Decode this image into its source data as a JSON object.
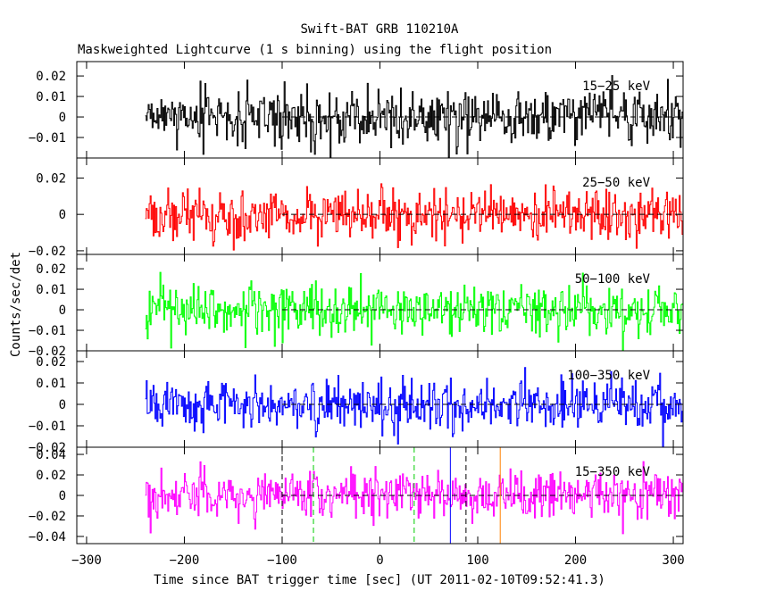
{
  "title": "Swift-BAT GRB 110210A",
  "subtitle": "Maskweighted Lightcurve (1 s binning) using the flight position",
  "ylabel": "Counts/sec/det",
  "xlabel": "Time since BAT trigger time [sec] (UT 2011-02-10T09:52:41.3)",
  "chart_data": {
    "type": "line",
    "x_axis": {
      "range": [
        -310,
        310
      ],
      "ticks": [
        -300,
        -200,
        -100,
        0,
        100,
        200,
        300
      ],
      "tick_labels": [
        "−300",
        "−200",
        "−100",
        "0",
        "100",
        "200",
        "300"
      ]
    },
    "data_x_range": [
      -240,
      310
    ],
    "binning_sec": 1,
    "panels": [
      {
        "band": "15−25 keV",
        "color": "#000000",
        "ylim": [
          -0.02,
          0.027
        ],
        "ticks": [
          -0.01,
          0,
          0.01,
          0.02
        ],
        "tick_labels": [
          "−0.01",
          "0",
          "0.01",
          "0.02"
        ],
        "noise_sigma": 0.007
      },
      {
        "band": "25−50 keV",
        "color": "#ff0000",
        "ylim": [
          -0.022,
          0.031
        ],
        "ticks": [
          -0.02,
          0,
          0.02
        ],
        "tick_labels": [
          "−0.02",
          "0",
          "0.02"
        ],
        "noise_sigma": 0.007
      },
      {
        "band": "50−100 keV",
        "color": "#00ff00",
        "ylim": [
          -0.02,
          0.027
        ],
        "ticks": [
          -0.02,
          -0.01,
          0,
          0.01,
          0.02
        ],
        "tick_labels": [
          "−0.02",
          "−0.01",
          "0",
          "0.01",
          "0.02"
        ],
        "noise_sigma": 0.0065
      },
      {
        "band": "100−350 keV",
        "color": "#0000ff",
        "ylim": [
          -0.02,
          0.025
        ],
        "ticks": [
          -0.02,
          -0.01,
          0,
          0.01,
          0.02
        ],
        "tick_labels": [
          "−0.02",
          "−0.01",
          "0",
          "0.01",
          "0.02"
        ],
        "noise_sigma": 0.0062
      },
      {
        "band": "15−350 keV",
        "color": "#ff00ff",
        "ylim": [
          -0.047,
          0.047
        ],
        "ticks": [
          -0.04,
          -0.02,
          0,
          0.02,
          0.04
        ],
        "tick_labels": [
          "−0.04",
          "−0.02",
          "0",
          "0.02",
          "0.04"
        ],
        "noise_sigma": 0.012
      }
    ],
    "markers": [
      {
        "x": -100,
        "color": "#000000",
        "style": "dashed"
      },
      {
        "x": -68,
        "color": "#00cc00",
        "style": "dashed"
      },
      {
        "x": 35,
        "color": "#00cc00",
        "style": "dashed"
      },
      {
        "x": 72,
        "color": "#0000ff",
        "style": "solid"
      },
      {
        "x": 88,
        "color": "#000000",
        "style": "dashed"
      },
      {
        "x": 123,
        "color": "#ff8000",
        "style": "solid"
      }
    ],
    "zero_line": true
  }
}
